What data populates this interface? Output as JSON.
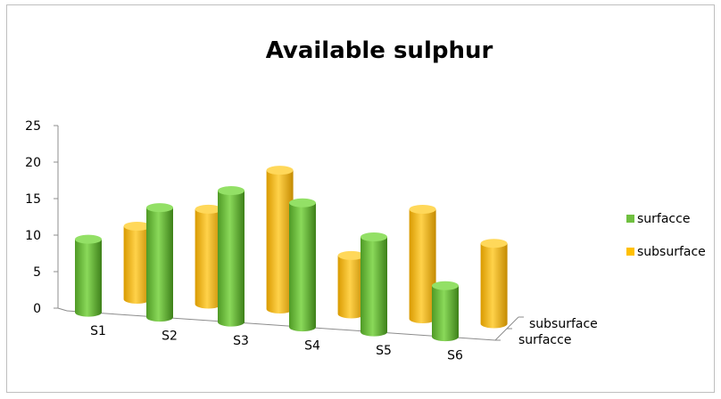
{
  "chart_data": {
    "type": "bar",
    "title": "Available sulphur",
    "categories": [
      "S1",
      "S2",
      "S3",
      "S4",
      "S5",
      "S6"
    ],
    "depth_labels": [
      "surfacce",
      "subsurface"
    ],
    "series": [
      {
        "name": "surfacce",
        "values": [
          10,
          15,
          18,
          17,
          13,
          7
        ],
        "color": "#70c040"
      },
      {
        "name": "subsurface",
        "values": [
          10,
          13,
          19,
          8,
          15,
          11
        ],
        "color": "#ffc000"
      }
    ],
    "yticks": [
      "0",
      "5",
      "10",
      "15",
      "20",
      "25"
    ],
    "ylim": [
      0,
      25
    ],
    "legend_position": "right",
    "bar_shape": "cylinder-3d"
  }
}
